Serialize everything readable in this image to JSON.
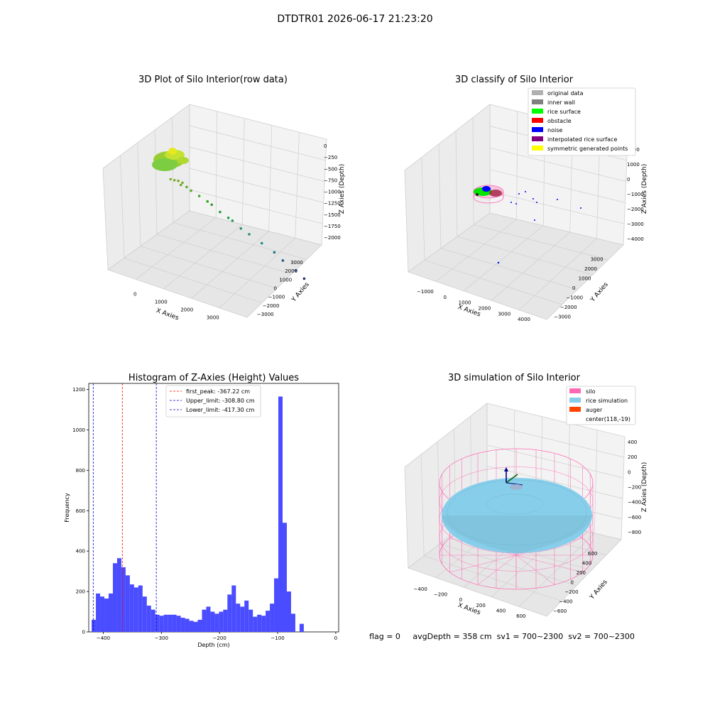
{
  "suptitle": "DTDTR01 2026-06-17 21:23:20",
  "status_line": "flag = 0     avgDepth = 358 cm  sv1 = 700~2300  sv2 = 700~2300",
  "colors": {
    "hist": "#4a4cff",
    "peak_line": "#ff0000",
    "limit_line": "#0000cc",
    "pane": "#f2f2f2",
    "grid": "#d0d0d0",
    "silo": "#ff69b4",
    "rice": "#87ceeb",
    "auger": "#ff4500"
  },
  "chart_data": [
    {
      "type": "scatter",
      "title": "3D Plot of Silo Interior(row data)",
      "xlabel": "X Axies",
      "ylabel": "Y Axies",
      "zlabel": "Z Axies (Depth)",
      "x_ticks": [
        "0",
        "1000",
        "2000",
        "3000"
      ],
      "y_ticks": [
        "3000",
        "2000",
        "1000",
        "0",
        "−1000",
        "−2000",
        "−3000"
      ],
      "z_ticks": [
        "0",
        "−250",
        "−500",
        "−750",
        "−1000",
        "−1250",
        "−1500",
        "−1750",
        "−2000"
      ],
      "zlim": [
        -2000,
        0
      ],
      "points": [
        {
          "x": 0,
          "y": -100,
          "z": -250
        },
        {
          "x": 100,
          "y": 0,
          "z": -280
        },
        {
          "x": 200,
          "y": 100,
          "z": -300
        },
        {
          "x": 300,
          "y": 50,
          "z": -320
        },
        {
          "x": 250,
          "y": -150,
          "z": -350
        },
        {
          "x": 400,
          "y": -50,
          "z": -400
        },
        {
          "x": 500,
          "y": -200,
          "z": -450
        },
        {
          "x": 700,
          "y": -250,
          "z": -550
        },
        {
          "x": 900,
          "y": -300,
          "z": -650
        },
        {
          "x": 1000,
          "y": -400,
          "z": -700
        },
        {
          "x": 1200,
          "y": -500,
          "z": -850
        },
        {
          "x": 1400,
          "y": -600,
          "z": -950
        },
        {
          "x": 1500,
          "y": -650,
          "z": -1000
        },
        {
          "x": 1700,
          "y": -800,
          "z": -1150
        },
        {
          "x": 1900,
          "y": -900,
          "z": -1250
        },
        {
          "x": 2200,
          "y": -1100,
          "z": -1400
        },
        {
          "x": 2500,
          "y": -1300,
          "z": -1550
        },
        {
          "x": 2700,
          "y": -1500,
          "z": -1700
        },
        {
          "x": 3000,
          "y": -1800,
          "z": -1850
        },
        {
          "x": 3200,
          "y": -2000,
          "z": -2000
        }
      ]
    },
    {
      "type": "scatter",
      "title": "3D classify of Silo Interior",
      "xlabel": "X Axies",
      "ylabel": "Y Axies",
      "zlabel": "Z Axies (Depth)",
      "x_ticks": [
        "−1000",
        "0",
        "1000",
        "2000",
        "3000",
        "4000"
      ],
      "y_ticks": [
        "3000",
        "2000",
        "1000",
        "0",
        "−1000",
        "−2000",
        "−3000"
      ],
      "z_ticks": [
        "2000",
        "1000",
        "0",
        "−1000",
        "−2000",
        "−3000",
        "−4000"
      ],
      "zlim": [
        -4000,
        2000
      ],
      "legend_position": "top-right",
      "legend": [
        {
          "label": "original data",
          "color": "#b0b0b0"
        },
        {
          "label": "inner wall",
          "color": "#808080"
        },
        {
          "label": "rice surface",
          "color": "#00ff00"
        },
        {
          "label": "obstacle",
          "color": "#ff0000"
        },
        {
          "label": "noise",
          "color": "#0000ff"
        },
        {
          "label": "interpolated rice surface",
          "color": "#800080"
        },
        {
          "label": "symmetric generated points",
          "color": "#ffff00"
        }
      ]
    },
    {
      "type": "bar",
      "title": "Histogram of Z-Axies (Height) Values",
      "xlabel": "Depth (cm)",
      "ylabel": "Frequency",
      "xlim": [
        -425,
        5
      ],
      "ylim": [
        0,
        1230
      ],
      "x_ticks": [
        -400,
        -300,
        -200,
        -100,
        0
      ],
      "y_ticks": [
        0,
        200,
        400,
        600,
        800,
        1000,
        1200
      ],
      "bin_start": -420,
      "bin_width": 7.3,
      "values": [
        60,
        190,
        175,
        165,
        190,
        340,
        365,
        320,
        280,
        235,
        220,
        230,
        175,
        130,
        110,
        85,
        80,
        85,
        85,
        85,
        80,
        70,
        65,
        55,
        50,
        60,
        110,
        125,
        100,
        90,
        100,
        110,
        185,
        230,
        140,
        125,
        155,
        110,
        75,
        85,
        80,
        105,
        140,
        265,
        1165,
        540,
        200,
        90,
        0,
        40
      ],
      "vlines": [
        {
          "x": -367.22,
          "style": "peak"
        },
        {
          "x": -308.8,
          "style": "limit"
        },
        {
          "x": -417.3,
          "style": "limit"
        }
      ],
      "legend_position": "top-center",
      "legend": [
        {
          "label": "first_peak: -367.22 cm",
          "style": "peak"
        },
        {
          "label": "Upper_limit: -308.80 cm",
          "style": "limit"
        },
        {
          "label": "Lower_limit: -417.30 cm",
          "style": "limit"
        }
      ]
    },
    {
      "type": "scatter",
      "title": "3D simulation of Silo Interior",
      "xlabel": "X Axies",
      "ylabel": "Y Axies",
      "zlabel": "Z Axies (Depth)",
      "x_ticks": [
        "−400",
        "−200",
        "0",
        "200",
        "400",
        "600"
      ],
      "y_ticks": [
        "600",
        "400",
        "200",
        "0",
        "−200",
        "−400",
        "−600"
      ],
      "z_ticks": [
        "400",
        "200",
        "0",
        "−200",
        "−400",
        "−600",
        "−800"
      ],
      "zlim": [
        -900,
        450
      ],
      "legend_position": "top-right",
      "legend": [
        {
          "label": "silo",
          "color": "#ff69b4"
        },
        {
          "label": "rice simulation",
          "color": "#87ceeb"
        },
        {
          "label": "auger",
          "color": "#ff4500"
        },
        {
          "label": "center(118,-19)",
          "color": ""
        }
      ]
    }
  ]
}
